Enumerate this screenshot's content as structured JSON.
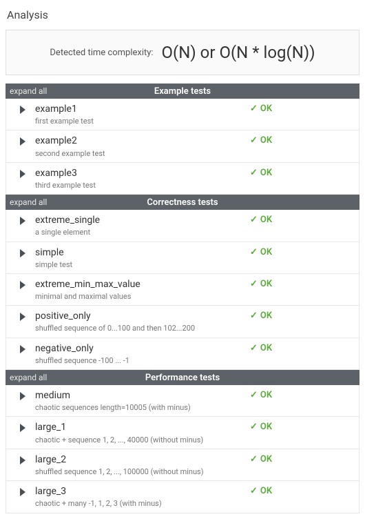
{
  "title": "Analysis",
  "complexity": {
    "label": "Detected time complexity:",
    "value": "O(N) or O(N * log(N))"
  },
  "expand_all_label": "expand all",
  "status_ok": "OK",
  "colors": {
    "header_bg": "#5d6268",
    "ok_green": "#5aaa3a",
    "border": "#e8e8e8",
    "complexity_bg": "#fafafa"
  },
  "sections": [
    {
      "title": "Example tests",
      "tests": [
        {
          "name": "example1",
          "desc": "first example test",
          "status": "OK"
        },
        {
          "name": "example2",
          "desc": "second example test",
          "status": "OK"
        },
        {
          "name": "example3",
          "desc": "third example test",
          "status": "OK"
        }
      ]
    },
    {
      "title": "Correctness tests",
      "tests": [
        {
          "name": "extreme_single",
          "desc": "a single element",
          "status": "OK"
        },
        {
          "name": "simple",
          "desc": "simple test",
          "status": "OK"
        },
        {
          "name": "extreme_min_max_value",
          "desc": "minimal and maximal values",
          "status": "OK"
        },
        {
          "name": "positive_only",
          "desc": "shuffled sequence of 0...100 and then 102...200",
          "status": "OK"
        },
        {
          "name": "negative_only",
          "desc": "shuffled sequence -100 ... -1",
          "status": "OK"
        }
      ]
    },
    {
      "title": "Performance tests",
      "tests": [
        {
          "name": "medium",
          "desc": "chaotic sequences length=10005 (with minus)",
          "status": "OK"
        },
        {
          "name": "large_1",
          "desc": "chaotic + sequence 1, 2, ..., 40000 (without minus)",
          "status": "OK"
        },
        {
          "name": "large_2",
          "desc": "shuffled sequence 1, 2, ..., 100000 (without minus)",
          "status": "OK"
        },
        {
          "name": "large_3",
          "desc": "chaotic + many -1, 1, 2, 3 (with minus)",
          "status": "OK"
        }
      ]
    }
  ]
}
